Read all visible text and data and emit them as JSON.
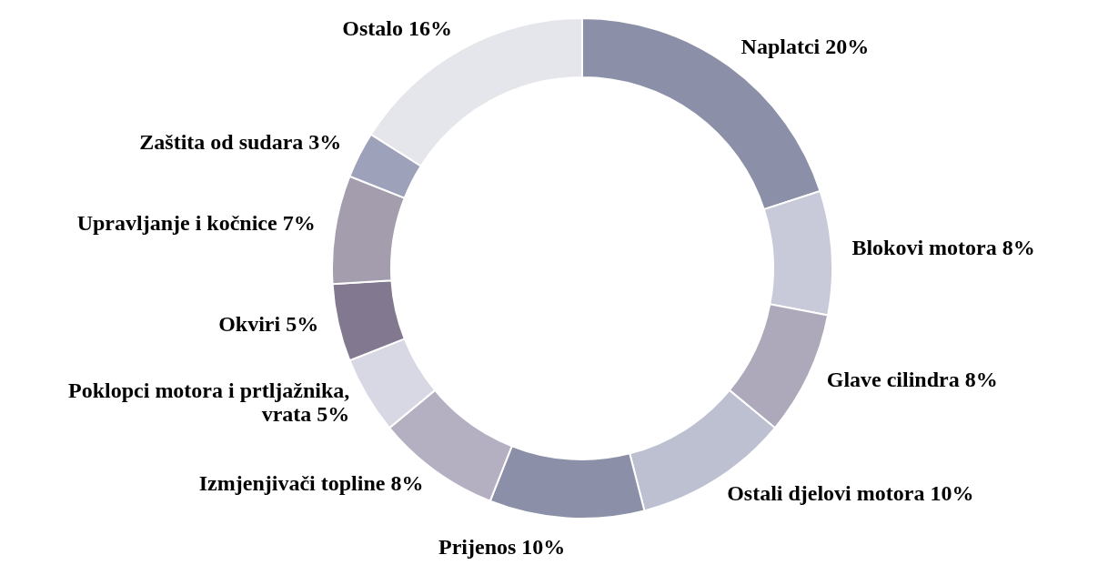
{
  "chart_data": {
    "type": "donut",
    "categories": [
      "Naplatci",
      "Blokovi motora",
      "Glave cilindra",
      "Ostali djelovi motora",
      "Prijenos",
      "Izmjenjivači topline",
      "Poklopci motora i prtljažnika, vrata",
      "Okviri",
      "Upravljanje i kočnice",
      "Zaštita od sudara",
      "Ostalo"
    ],
    "values": [
      20,
      8,
      8,
      10,
      10,
      8,
      5,
      5,
      7,
      3,
      16
    ],
    "value_labels": [
      "20%",
      "8%",
      "8%",
      "10%",
      "10%",
      "8%",
      "5%",
      "5%",
      "7%",
      "3%",
      "16%"
    ],
    "colors": [
      "#8b90a8",
      "#c8c9d9",
      "#aea9ba",
      "#bdc0d1",
      "#8b90a8",
      "#b4afc1",
      "#d8d8e4",
      "#827890",
      "#a39dae",
      "#9da1b9",
      "#e5e5ec"
    ],
    "legend": false
  }
}
